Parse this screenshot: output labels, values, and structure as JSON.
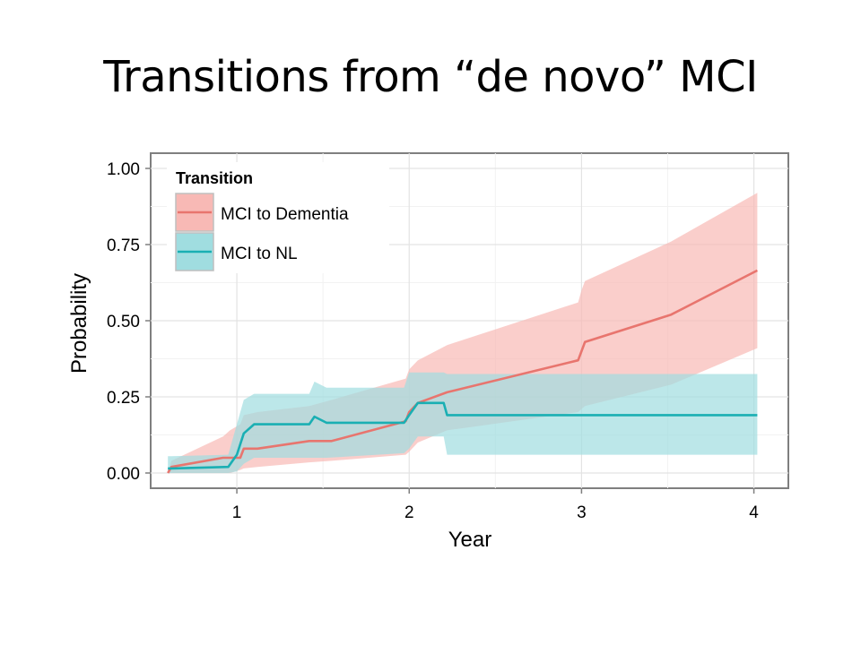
{
  "slide": {
    "title": "Transitions from “de novo” MCI"
  },
  "chart_data": {
    "type": "line",
    "title": "",
    "xlabel": "Year",
    "ylabel": "Probability",
    "xlim": [
      0.5,
      4.2
    ],
    "ylim": [
      -0.05,
      1.05
    ],
    "xticks": [
      1,
      2,
      3,
      4
    ],
    "xtick_labels": [
      "1",
      "2",
      "3",
      "4"
    ],
    "yticks": [
      0,
      0.25,
      0.5,
      0.75,
      1.0
    ],
    "ytick_labels": [
      "0.00",
      "0.25",
      "0.50",
      "0.75",
      "1.00"
    ],
    "grid": true,
    "legend": {
      "title": "Transition",
      "position": "top-left",
      "entries": [
        "MCI to Dementia",
        "MCI to NL"
      ]
    },
    "series": [
      {
        "name": "MCI to Dementia",
        "color": "#e8756e",
        "band_color": "#f8b9b5",
        "x": [
          0.6,
          0.62,
          0.92,
          0.96,
          1.02,
          1.04,
          1.12,
          1.42,
          1.55,
          1.98,
          2.0,
          2.05,
          2.22,
          2.98,
          3.0,
          3.02,
          3.52,
          4.02
        ],
        "y": [
          0.0,
          0.02,
          0.05,
          0.05,
          0.05,
          0.08,
          0.08,
          0.105,
          0.105,
          0.17,
          0.2,
          0.23,
          0.265,
          0.37,
          0.4,
          0.43,
          0.52,
          0.665
        ],
        "lower": [
          0.0,
          0.0,
          0.0,
          0.0,
          0.01,
          0.015,
          0.02,
          0.035,
          0.04,
          0.06,
          0.07,
          0.1,
          0.14,
          0.2,
          0.21,
          0.22,
          0.29,
          0.41
        ],
        "upper": [
          0.0,
          0.04,
          0.12,
          0.14,
          0.16,
          0.19,
          0.2,
          0.22,
          0.24,
          0.31,
          0.34,
          0.37,
          0.42,
          0.56,
          0.6,
          0.63,
          0.76,
          0.92
        ]
      },
      {
        "name": "MCI to NL",
        "color": "#1aafb3",
        "band_color": "#a0dde0",
        "x": [
          0.6,
          0.62,
          0.95,
          1.0,
          1.04,
          1.1,
          1.42,
          1.45,
          1.52,
          1.97,
          2.0,
          2.05,
          2.2,
          2.22,
          3.0,
          4.02
        ],
        "y": [
          0.015,
          0.015,
          0.02,
          0.06,
          0.13,
          0.16,
          0.16,
          0.185,
          0.165,
          0.165,
          0.19,
          0.23,
          0.23,
          0.19,
          0.19,
          0.19
        ],
        "lower": [
          0.0,
          0.0,
          0.0,
          0.005,
          0.03,
          0.05,
          0.05,
          0.05,
          0.05,
          0.065,
          0.08,
          0.12,
          0.12,
          0.06,
          0.06,
          0.06
        ],
        "upper": [
          0.055,
          0.055,
          0.06,
          0.16,
          0.24,
          0.26,
          0.26,
          0.3,
          0.28,
          0.28,
          0.33,
          0.33,
          0.33,
          0.325,
          0.325,
          0.325
        ]
      }
    ]
  }
}
